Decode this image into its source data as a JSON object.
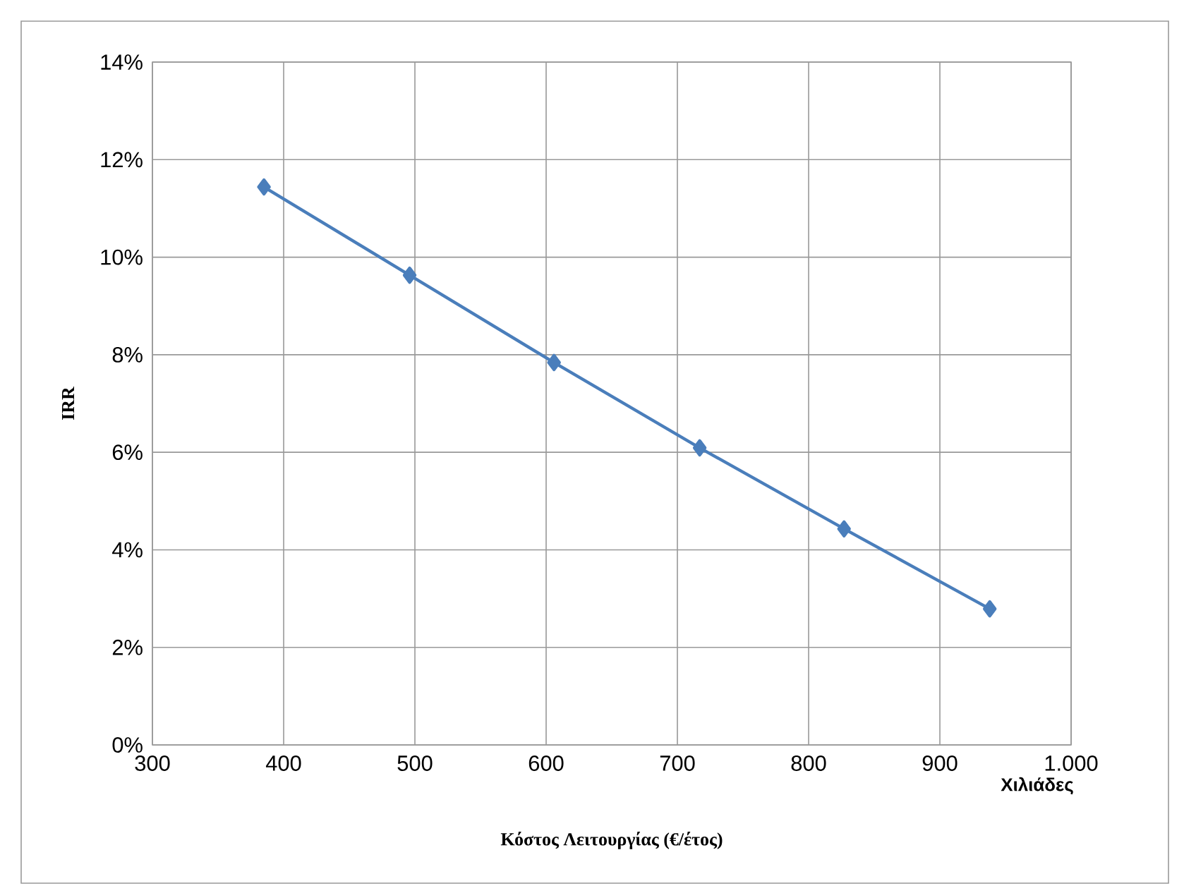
{
  "chart_data": {
    "type": "line",
    "xlabel": "Κόστος Λειτουργίας (€/έτος)",
    "ylabel": "IRR",
    "annotations": [
      "Χιλιάδες"
    ],
    "x": [
      385,
      496,
      606,
      717,
      827,
      938
    ],
    "values": [
      11.44,
      9.63,
      7.84,
      6.09,
      4.43,
      2.79
    ],
    "color": "#4a7ebb",
    "marker": "diamond",
    "line_style": "solid",
    "grid": true,
    "xlim": [
      300,
      1000
    ],
    "xticks": [
      300,
      400,
      500,
      600,
      700,
      800,
      900,
      {
        "value": 1000,
        "label": "1.000"
      }
    ],
    "ylim": [
      0,
      14
    ],
    "yticks": [
      {
        "value": 0,
        "label": "0%"
      },
      {
        "value": 2,
        "label": "2%"
      },
      {
        "value": 4,
        "label": "4%"
      },
      {
        "value": 6,
        "label": "6%"
      },
      {
        "value": 8,
        "label": "8%"
      },
      {
        "value": 10,
        "label": "10%"
      },
      {
        "value": 12,
        "label": "12%"
      },
      {
        "value": 14,
        "label": "14%"
      }
    ]
  }
}
